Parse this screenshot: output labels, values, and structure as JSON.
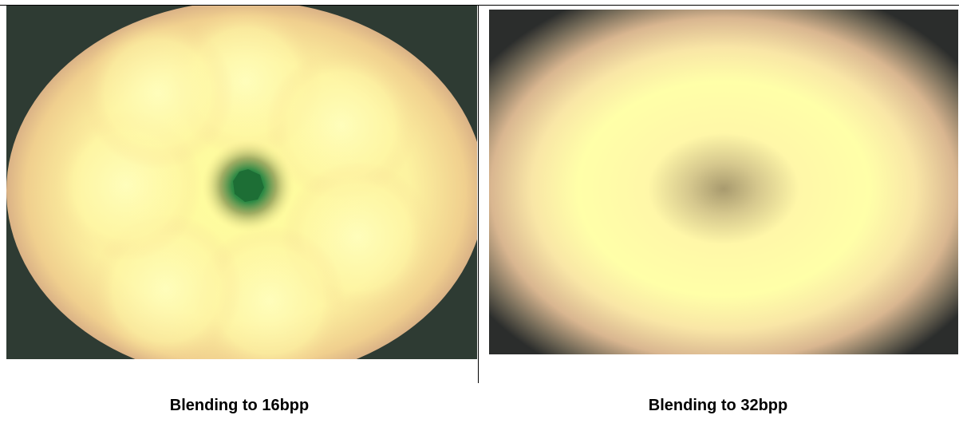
{
  "header": {
    "fragment_text": "…"
  },
  "figure_left": {
    "caption": "Blending to 16bpp",
    "colors": {
      "background": "#2e3b33",
      "bright_center": "#ffff9e",
      "warm_mid": "#f3d98a",
      "pink_ring": "#d9a38a",
      "green_core": "#1f7a3a"
    }
  },
  "figure_right": {
    "caption": "Blending to 32bpp",
    "colors": {
      "background": "#2b2d2c",
      "bright_ring": "#ffffa8",
      "warm_ring": "#f4d7a0",
      "core": "#a89a6e"
    }
  }
}
